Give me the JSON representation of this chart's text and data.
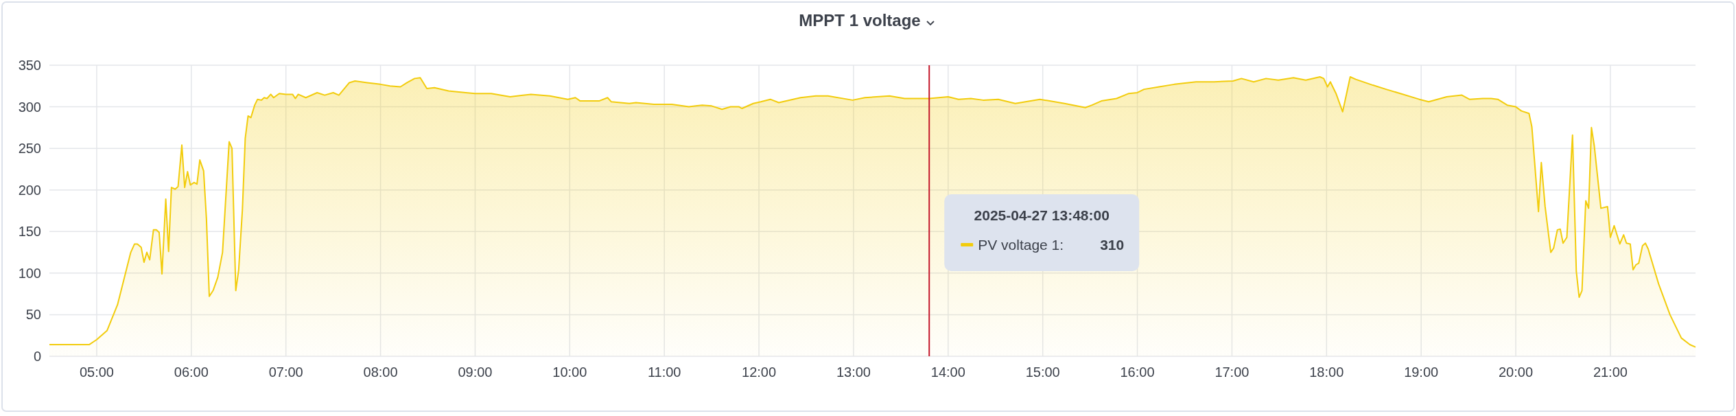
{
  "chart_data": {
    "type": "area",
    "title": "MPPT 1 voltage",
    "grid": true,
    "xlim": [
      4.5,
      21.9
    ],
    "xticks": [
      {
        "value": 5,
        "label": "05:00"
      },
      {
        "value": 6,
        "label": "06:00"
      },
      {
        "value": 7,
        "label": "07:00"
      },
      {
        "value": 8,
        "label": "08:00"
      },
      {
        "value": 9,
        "label": "09:00"
      },
      {
        "value": 10,
        "label": "10:00"
      },
      {
        "value": 11,
        "label": "11:00"
      },
      {
        "value": 12,
        "label": "12:00"
      },
      {
        "value": 13,
        "label": "13:00"
      },
      {
        "value": 14,
        "label": "14:00"
      },
      {
        "value": 15,
        "label": "15:00"
      },
      {
        "value": 16,
        "label": "16:00"
      },
      {
        "value": 17,
        "label": "17:00"
      },
      {
        "value": 18,
        "label": "18:00"
      },
      {
        "value": 19,
        "label": "19:00"
      },
      {
        "value": 20,
        "label": "20:00"
      },
      {
        "value": 21,
        "label": "21:00"
      }
    ],
    "ylim": [
      0,
      350
    ],
    "yticks": [
      0,
      50,
      100,
      150,
      200,
      250,
      300,
      350
    ],
    "ref_lines": [
      {
        "axis": "x",
        "value": 13.8,
        "color": "#c4162a"
      }
    ],
    "annotations": [
      "2025-04-27 13:48:00",
      ":",
      "310"
    ],
    "series": [
      {
        "name": "PV voltage 1",
        "color": "#f2cc0c",
        "x": [
          4.5,
          4.92,
          5.0,
          5.11,
          5.22,
          5.36,
          5.4,
          5.43,
          5.47,
          5.5,
          5.53,
          5.56,
          5.6,
          5.63,
          5.66,
          5.69,
          5.73,
          5.76,
          5.79,
          5.83,
          5.86,
          5.9,
          5.93,
          5.96,
          5.99,
          6.03,
          6.06,
          6.09,
          6.13,
          6.16,
          6.19,
          6.23,
          6.28,
          6.33,
          6.4,
          6.43,
          6.47,
          6.5,
          6.54,
          6.57,
          6.6,
          6.63,
          6.67,
          6.7,
          6.74,
          6.77,
          6.8,
          6.84,
          6.87,
          6.93,
          7.0,
          7.07,
          7.1,
          7.13,
          7.21,
          7.33,
          7.41,
          7.5,
          7.56,
          7.67,
          7.73,
          7.86,
          8.0,
          8.1,
          8.21,
          8.28,
          8.36,
          8.42,
          8.49,
          8.57,
          8.72,
          8.9,
          9.0,
          9.17,
          9.37,
          9.59,
          9.79,
          9.98,
          10.06,
          10.11,
          10.31,
          10.4,
          10.44,
          10.63,
          10.7,
          10.89,
          11.08,
          11.26,
          11.4,
          11.5,
          11.61,
          11.7,
          11.79,
          11.82,
          11.94,
          12.02,
          12.12,
          12.21,
          12.44,
          12.6,
          12.73,
          12.99,
          13.12,
          13.38,
          13.54,
          13.8,
          14.0,
          14.11,
          14.24,
          14.37,
          14.53,
          14.71,
          14.97,
          15.23,
          15.45,
          15.52,
          15.62,
          15.78,
          15.91,
          16.0,
          16.07,
          16.23,
          16.39,
          16.62,
          16.81,
          17.01,
          17.1,
          17.23,
          17.36,
          17.49,
          17.65,
          17.78,
          17.93,
          17.97,
          18.01,
          18.04,
          18.1,
          18.17,
          18.25,
          18.31,
          18.49,
          18.63,
          18.78,
          18.98,
          19.08,
          19.27,
          19.43,
          19.51,
          19.65,
          19.74,
          19.81,
          19.91,
          20.0,
          20.06,
          20.14,
          20.17,
          20.24,
          20.27,
          20.31,
          20.37,
          20.4,
          20.44,
          20.47,
          20.5,
          20.54,
          20.6,
          20.64,
          20.67,
          20.7,
          20.74,
          20.77,
          20.8,
          20.83,
          20.9,
          20.97,
          21.0,
          21.04,
          21.1,
          21.14,
          21.17,
          21.21,
          21.24,
          21.27,
          21.3,
          21.34,
          21.37,
          21.4,
          21.51,
          21.63,
          21.75,
          21.84,
          21.9
        ],
        "values": [
          14,
          14,
          20,
          31,
          62,
          125,
          135,
          135,
          131,
          113,
          125,
          116,
          152,
          152,
          149,
          99,
          189,
          126,
          203,
          201,
          204,
          254,
          203,
          222,
          206,
          209,
          207,
          236,
          223,
          165,
          72,
          79,
          95,
          125,
          258,
          250,
          79,
          103,
          176,
          262,
          289,
          287,
          302,
          309,
          308,
          311,
          310,
          315,
          311,
          316,
          315,
          315,
          310,
          315,
          311,
          317,
          314,
          317,
          314,
          329,
          331,
          329,
          327,
          325,
          324,
          329,
          334,
          335,
          322,
          323,
          319,
          317,
          316,
          316,
          312,
          315,
          313,
          309,
          311,
          307,
          307,
          311,
          306,
          304,
          305,
          303,
          303,
          300,
          302,
          301,
          297,
          300,
          300,
          298,
          304,
          306,
          309,
          305,
          311,
          313,
          313,
          308,
          311,
          313,
          310,
          310,
          312,
          309,
          310,
          308,
          309,
          304,
          309,
          304,
          299,
          302,
          307,
          310,
          316,
          317,
          321,
          324,
          327,
          330,
          330,
          331,
          334,
          330,
          334,
          332,
          335,
          332,
          336,
          334,
          324,
          330,
          316,
          294,
          336,
          333,
          326,
          321,
          316,
          309,
          306,
          312,
          314,
          309,
          310,
          310,
          309,
          302,
          300,
          295,
          292,
          276,
          174,
          233,
          180,
          125,
          130,
          152,
          153,
          136,
          143,
          266,
          102,
          71,
          79,
          187,
          178,
          275,
          253,
          178,
          180,
          143,
          157,
          135,
          146,
          136,
          135,
          104,
          110,
          112,
          133,
          136,
          129,
          87,
          50,
          22,
          14,
          11
        ]
      }
    ]
  }
}
